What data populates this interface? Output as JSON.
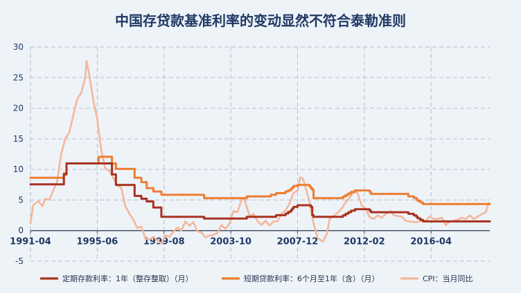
{
  "colors": {
    "background": "#eef3f8",
    "title": "#1f3864",
    "axis_text": "#1f3864",
    "grid": "#b7bec8",
    "axis": "#26324a"
  },
  "chart_data": {
    "type": "line",
    "title": "中国存贷款基准利率的变动显然不符合泰勒准则",
    "xlabel": "",
    "ylabel": "",
    "x_range": [
      "1991-04",
      "2019-12"
    ],
    "ylim": [
      -5,
      30
    ],
    "y_ticks": [
      -5,
      0,
      5,
      10,
      15,
      20,
      25,
      30
    ],
    "x_ticks": [
      "1991-04",
      "1995-06",
      "1999-08",
      "2003-10",
      "2007-12",
      "2012-02",
      "2016-04"
    ],
    "grid": true,
    "legend_position": "bottom",
    "series": [
      {
        "name": "定期存款利率：1年（整存整取）（月）",
        "color": "#a8321f",
        "step": true,
        "x": [
          "1991-04",
          "1993-05",
          "1993-07",
          "1996-05",
          "1996-08",
          "1997-10",
          "1998-03",
          "1998-07",
          "1998-12",
          "1999-06",
          "2002-02",
          "2004-10",
          "2006-08",
          "2007-03",
          "2007-05",
          "2007-07",
          "2007-08",
          "2007-09",
          "2007-12",
          "2008-10",
          "2008-11",
          "2008-12",
          "2010-10",
          "2010-12",
          "2011-02",
          "2011-04",
          "2011-07",
          "2012-06",
          "2012-07",
          "2014-11",
          "2015-03",
          "2015-05",
          "2015-06",
          "2015-08",
          "2015-10",
          "2019-12"
        ],
        "values": [
          7.56,
          9.18,
          10.98,
          9.18,
          7.47,
          5.67,
          5.22,
          4.77,
          3.78,
          2.25,
          1.98,
          2.25,
          2.52,
          2.79,
          3.06,
          3.33,
          3.6,
          3.87,
          4.14,
          3.87,
          2.52,
          2.25,
          2.5,
          2.75,
          3.0,
          3.25,
          3.5,
          3.25,
          3.0,
          2.75,
          2.5,
          2.25,
          2.0,
          1.75,
          1.5,
          1.5
        ]
      },
      {
        "name": "短期贷款利率：6个月至1年（含）（月）",
        "color": "#ee7d31",
        "step": true,
        "x": [
          "1991-04",
          "1993-05",
          "1993-07",
          "1995-01",
          "1995-07",
          "1996-05",
          "1996-08",
          "1997-10",
          "1998-03",
          "1998-07",
          "1998-12",
          "1999-06",
          "2002-02",
          "2004-10",
          "2006-04",
          "2006-08",
          "2007-03",
          "2007-05",
          "2007-07",
          "2007-08",
          "2007-09",
          "2007-12",
          "2008-09",
          "2008-10",
          "2008-11",
          "2008-12",
          "2010-10",
          "2010-12",
          "2011-02",
          "2011-04",
          "2011-07",
          "2012-06",
          "2012-07",
          "2014-11",
          "2015-03",
          "2015-05",
          "2015-06",
          "2015-08",
          "2015-10",
          "2019-12"
        ],
        "values": [
          8.64,
          9.36,
          10.98,
          10.98,
          12.06,
          10.98,
          10.08,
          8.64,
          7.92,
          6.93,
          6.39,
          5.85,
          5.31,
          5.58,
          5.85,
          6.12,
          6.39,
          6.57,
          6.84,
          7.02,
          7.29,
          7.47,
          7.2,
          6.93,
          6.66,
          5.31,
          5.56,
          5.81,
          6.06,
          6.31,
          6.56,
          6.31,
          6.0,
          5.6,
          5.35,
          5.1,
          4.85,
          4.6,
          4.35,
          4.35
        ]
      },
      {
        "name": "CPI：当月同比",
        "color": "#f4b69a",
        "step": false,
        "x": [
          "1991-04",
          "1991-06",
          "1991-10",
          "1992-01",
          "1992-03",
          "1992-06",
          "1992-09",
          "1992-12",
          "1993-03",
          "1993-06",
          "1993-09",
          "1993-12",
          "1994-03",
          "1994-06",
          "1994-09",
          "1994-10",
          "1994-12",
          "1995-03",
          "1995-06",
          "1995-09",
          "1995-12",
          "1996-03",
          "1996-06",
          "1996-09",
          "1996-12",
          "1997-03",
          "1997-06",
          "1997-09",
          "1997-12",
          "1998-03",
          "1998-06",
          "1998-09",
          "1998-12",
          "1999-03",
          "1999-06",
          "1999-09",
          "1999-12",
          "2000-03",
          "2000-06",
          "2000-09",
          "2000-12",
          "2001-03",
          "2001-06",
          "2001-09",
          "2001-12",
          "2002-03",
          "2002-06",
          "2002-09",
          "2002-12",
          "2003-03",
          "2003-06",
          "2003-09",
          "2003-12",
          "2004-03",
          "2004-06",
          "2004-08",
          "2004-12",
          "2005-03",
          "2005-06",
          "2005-09",
          "2005-12",
          "2006-03",
          "2006-06",
          "2006-09",
          "2006-12",
          "2007-03",
          "2007-06",
          "2007-09",
          "2007-12",
          "2008-02",
          "2008-04",
          "2008-06",
          "2008-09",
          "2008-12",
          "2009-03",
          "2009-07",
          "2009-10",
          "2009-12",
          "2010-03",
          "2010-06",
          "2010-09",
          "2010-12",
          "2011-03",
          "2011-07",
          "2011-09",
          "2011-12",
          "2012-03",
          "2012-06",
          "2012-09",
          "2012-12",
          "2013-03",
          "2013-06",
          "2013-10",
          "2013-12",
          "2014-03",
          "2014-06",
          "2014-09",
          "2014-12",
          "2015-03",
          "2015-06",
          "2015-09",
          "2015-12",
          "2016-03",
          "2016-06",
          "2016-09",
          "2016-12",
          "2017-03",
          "2017-06",
          "2017-09",
          "2017-12",
          "2018-03",
          "2018-06",
          "2018-09",
          "2018-12",
          "2019-03",
          "2019-06",
          "2019-09",
          "2019-11",
          "2019-12"
        ],
        "values": [
          1.2,
          4.2,
          4.8,
          4.0,
          5.2,
          5.0,
          6.5,
          8.0,
          12.5,
          15.0,
          16.0,
          18.8,
          21.5,
          22.5,
          25.0,
          27.7,
          25.5,
          21.3,
          18.2,
          13.2,
          10.1,
          9.8,
          8.6,
          7.4,
          7.0,
          4.0,
          2.8,
          1.8,
          0.4,
          0.7,
          -1.3,
          -1.5,
          -1.0,
          -1.6,
          -2.1,
          -0.8,
          -1.0,
          -0.2,
          0.5,
          0.0,
          1.5,
          0.8,
          1.4,
          -0.1,
          -0.3,
          -1.1,
          -0.8,
          -0.7,
          -0.4,
          0.9,
          0.3,
          1.1,
          3.2,
          3.0,
          5.0,
          5.3,
          2.4,
          2.7,
          1.6,
          0.9,
          1.6,
          0.8,
          1.5,
          1.5,
          2.8,
          3.3,
          4.4,
          6.2,
          6.5,
          8.7,
          8.5,
          7.1,
          4.6,
          1.2,
          -1.2,
          -1.8,
          -0.5,
          1.9,
          2.4,
          2.9,
          3.6,
          4.6,
          5.4,
          6.5,
          6.1,
          4.1,
          3.6,
          2.2,
          1.9,
          2.5,
          2.1,
          2.7,
          3.2,
          2.5,
          2.4,
          2.3,
          1.6,
          1.5,
          1.4,
          1.4,
          1.6,
          1.6,
          2.3,
          1.9,
          1.9,
          2.1,
          0.9,
          1.5,
          1.6,
          1.8,
          2.1,
          1.9,
          2.5,
          1.9,
          2.3,
          2.7,
          3.0,
          4.5,
          4.5
        ]
      }
    ]
  }
}
